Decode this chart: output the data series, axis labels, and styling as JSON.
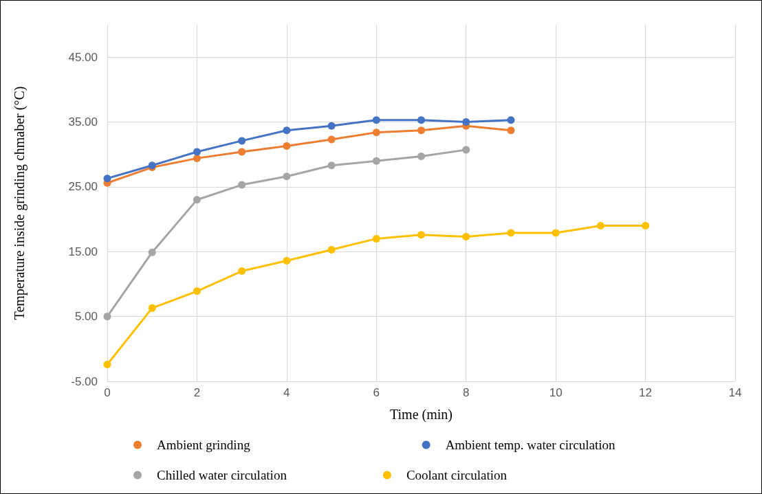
{
  "chart_data": {
    "type": "line",
    "xlabel": "Time (min)",
    "ylabel": "Temperature inside grinding chmaber (°C)",
    "xlim": [
      0,
      14
    ],
    "xticks": [
      0,
      2,
      4,
      6,
      8,
      10,
      12,
      14
    ],
    "ylim": [
      -5,
      50
    ],
    "yticks": [
      {
        "value": -5,
        "label": "-5.00"
      },
      {
        "value": 5,
        "label": "5.00"
      },
      {
        "value": 15,
        "label": "15.00"
      },
      {
        "value": 25,
        "label": "25.00"
      },
      {
        "value": 35,
        "label": "35.00"
      },
      {
        "value": 45,
        "label": "45.00"
      }
    ],
    "grid": true,
    "legend": "bottom",
    "marker": "circle",
    "line_style": "solid",
    "series": [
      {
        "name": "Ambient grinding",
        "color": "#ed7d31",
        "x": [
          0,
          1,
          2,
          3,
          4,
          5,
          6,
          7,
          8,
          9
        ],
        "values": [
          25.6,
          28.0,
          29.4,
          30.4,
          31.3,
          32.3,
          33.4,
          33.7,
          34.4,
          33.7
        ]
      },
      {
        "name": "Ambient temp. water circulation",
        "color": "#4472c4",
        "x": [
          0,
          1,
          2,
          3,
          4,
          5,
          6,
          7,
          8,
          9
        ],
        "values": [
          26.3,
          28.3,
          30.4,
          32.1,
          33.7,
          34.4,
          35.3,
          35.3,
          35.0,
          35.3
        ]
      },
      {
        "name": "Chilled water circulation",
        "color": "#a5a5a5",
        "x": [
          0,
          1,
          2,
          3,
          4,
          5,
          6,
          7,
          8
        ],
        "values": [
          5.0,
          14.9,
          23.0,
          25.3,
          26.6,
          28.3,
          29.0,
          29.7,
          30.7
        ]
      },
      {
        "name": "Coolant circulation",
        "color": "#ffc000",
        "x": [
          0,
          1,
          2,
          3,
          4,
          5,
          6,
          7,
          8,
          9,
          10,
          11,
          12
        ],
        "values": [
          -2.4,
          6.3,
          8.9,
          12.0,
          13.6,
          15.3,
          17.0,
          17.6,
          17.3,
          17.9,
          17.9,
          19.0,
          19.0
        ]
      }
    ]
  }
}
